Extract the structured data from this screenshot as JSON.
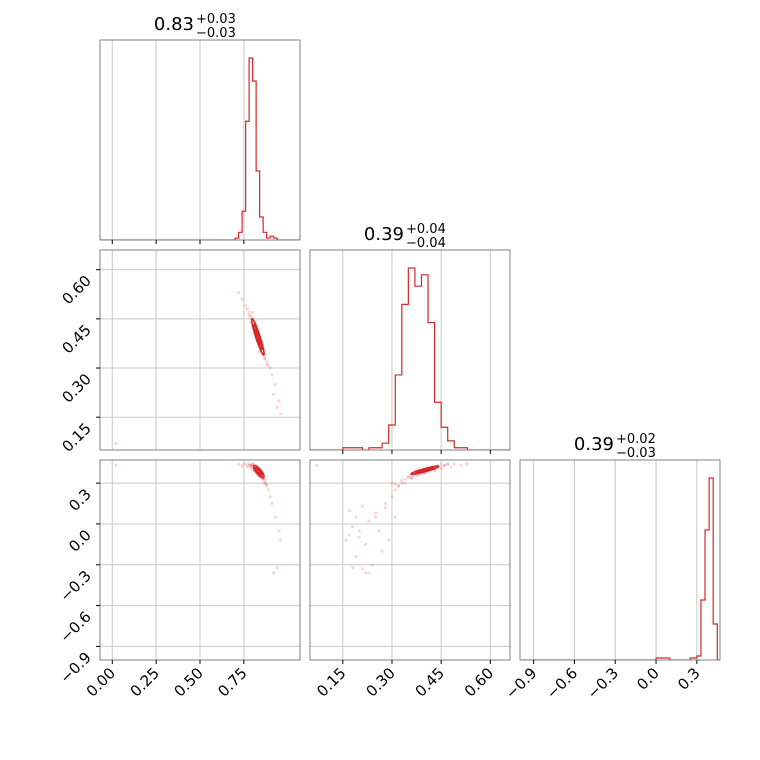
{
  "chart_data": {
    "type": "corner",
    "color": "#d62728",
    "parameters": [
      {
        "title_main": "0.83",
        "title_plus": "+0.03",
        "title_minus": "−0.03",
        "range": [
          -0.07,
          1.07
        ],
        "ticks": [
          0.0,
          0.25,
          0.5,
          0.75
        ],
        "tick_labels": [
          "0.00",
          "0.25",
          "0.50",
          "0.75"
        ],
        "hist": {
          "edges": [
            0.7,
            0.72,
            0.74,
            0.76,
            0.78,
            0.8,
            0.82,
            0.84,
            0.86,
            0.88,
            0.9,
            0.92,
            0.94,
            0.96
          ],
          "counts": [
            1,
            4,
            15,
            62,
            95,
            83,
            36,
            12,
            4,
            1,
            2,
            1,
            0
          ]
        }
      },
      {
        "title_main": "0.39",
        "title_plus": "+0.04",
        "title_minus": "−0.04",
        "range": [
          0.05,
          0.66
        ],
        "ticks": [
          0.15,
          0.3,
          0.45,
          0.6
        ],
        "tick_labels": [
          "0.15",
          "0.30",
          "0.45",
          "0.60"
        ],
        "hist": {
          "edges": [
            0.15,
            0.17,
            0.19,
            0.21,
            0.23,
            0.25,
            0.27,
            0.29,
            0.31,
            0.33,
            0.35,
            0.37,
            0.39,
            0.41,
            0.43,
            0.45,
            0.47,
            0.49,
            0.51,
            0.53
          ],
          "counts": [
            1,
            1,
            1,
            0,
            1,
            1,
            3,
            11,
            33,
            64,
            80,
            72,
            77,
            56,
            21,
            10,
            4,
            1,
            1
          ]
        }
      },
      {
        "title_main": "0.39",
        "title_plus": "+0.02",
        "title_minus": "−0.03",
        "range": [
          -1.0,
          0.47
        ],
        "ticks": [
          -0.9,
          -0.6,
          -0.3,
          0.0,
          0.3
        ],
        "tick_labels": [
          "−0.9",
          "−0.6",
          "−0.3",
          "0.0",
          "0.3"
        ],
        "hist": {
          "edges": [
            0.0,
            0.05,
            0.1,
            0.15,
            0.2,
            0.25,
            0.3,
            0.33,
            0.36,
            0.39,
            0.42,
            0.45
          ],
          "counts": [
            1,
            1,
            0,
            0,
            0,
            1,
            2,
            30,
            65,
            91,
            18
          ]
        }
      }
    ],
    "samples": {
      "x0": [
        0.72,
        0.74,
        0.76,
        0.77,
        0.78,
        0.78,
        0.79,
        0.79,
        0.8,
        0.8,
        0.8,
        0.81,
        0.81,
        0.81,
        0.82,
        0.82,
        0.82,
        0.83,
        0.83,
        0.83,
        0.83,
        0.84,
        0.84,
        0.84,
        0.85,
        0.85,
        0.85,
        0.86,
        0.86,
        0.87,
        0.87,
        0.88,
        0.89,
        0.9,
        0.91,
        0.93,
        0.95,
        0.96,
        0.79,
        0.81,
        0.83,
        0.85,
        0.87,
        0.82,
        0.8,
        0.84,
        0.86,
        0.88,
        0.92,
        0.94,
        0.02
      ],
      "x1": [
        0.53,
        0.51,
        0.49,
        0.48,
        0.46,
        0.47,
        0.45,
        0.46,
        0.44,
        0.43,
        0.45,
        0.42,
        0.43,
        0.41,
        0.41,
        0.4,
        0.42,
        0.39,
        0.4,
        0.38,
        0.41,
        0.38,
        0.37,
        0.39,
        0.36,
        0.37,
        0.38,
        0.35,
        0.34,
        0.33,
        0.34,
        0.32,
        0.31,
        0.3,
        0.28,
        0.25,
        0.2,
        0.16,
        0.44,
        0.42,
        0.38,
        0.36,
        0.33,
        0.43,
        0.47,
        0.35,
        0.36,
        0.31,
        0.22,
        0.18,
        0.07
      ],
      "x2": [
        0.44,
        0.43,
        0.44,
        0.42,
        0.43,
        0.44,
        0.41,
        0.43,
        0.42,
        0.4,
        0.44,
        0.41,
        0.39,
        0.42,
        0.4,
        0.38,
        0.41,
        0.39,
        0.37,
        0.4,
        0.38,
        0.36,
        0.39,
        0.37,
        0.35,
        0.36,
        0.38,
        0.34,
        0.33,
        0.32,
        0.3,
        0.28,
        0.25,
        0.2,
        0.15,
        0.05,
        -0.05,
        -0.12,
        0.43,
        0.4,
        0.36,
        0.34,
        0.3,
        0.41,
        0.44,
        0.35,
        0.33,
        0.29,
        -0.36,
        -0.32,
        0.43
      ],
      "extra_x1": [
        0.17,
        0.18,
        0.19,
        0.2,
        0.21,
        0.22,
        0.23,
        0.24,
        0.26,
        0.28,
        0.19,
        0.21,
        0.25,
        0.17,
        0.23,
        0.27,
        0.3,
        0.32,
        0.29,
        0.31
      ],
      "extra_x2": [
        0.1,
        -0.02,
        0.05,
        -0.1,
        0.13,
        -0.15,
        0.02,
        -0.3,
        -0.05,
        0.12,
        -0.24,
        -0.33,
        0.08,
        -0.08,
        -0.36,
        -0.2,
        0.3,
        0.28,
        -0.12,
        0.05
      ]
    },
    "contours": {
      "p0_p1": [
        {
          "cx": 0.83,
          "cy": 0.395,
          "sx": 0.035,
          "sy": 0.055,
          "rho": -0.93
        },
        {
          "cx": 0.83,
          "cy": 0.395,
          "sx": 0.024,
          "sy": 0.038,
          "rho": -0.93
        },
        {
          "cx": 0.83,
          "cy": 0.395,
          "sx": 0.014,
          "sy": 0.022,
          "rho": -0.93
        }
      ],
      "p0_p2": [
        {
          "cx": 0.835,
          "cy": 0.385,
          "sx": 0.03,
          "sy": 0.045,
          "rho": -0.8
        },
        {
          "cx": 0.835,
          "cy": 0.385,
          "sx": 0.02,
          "sy": 0.03,
          "rho": -0.8
        },
        {
          "cx": 0.835,
          "cy": 0.385,
          "sx": 0.011,
          "sy": 0.017,
          "rho": -0.8
        }
      ],
      "p1_p2": [
        {
          "cx": 0.4,
          "cy": 0.395,
          "sx": 0.042,
          "sy": 0.03,
          "rho": 0.92
        },
        {
          "cx": 0.4,
          "cy": 0.395,
          "sx": 0.028,
          "sy": 0.02,
          "rho": 0.92
        },
        {
          "cx": 0.4,
          "cy": 0.395,
          "sx": 0.016,
          "sy": 0.011,
          "rho": 0.92
        }
      ]
    }
  }
}
